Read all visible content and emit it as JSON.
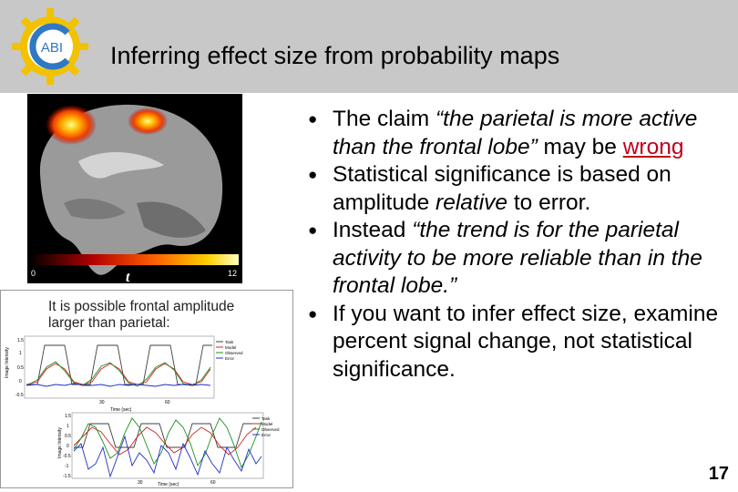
{
  "slide": {
    "title": "Inferring effect size from probability maps",
    "page_number": "17",
    "logo_text": "ABI"
  },
  "bullets": [
    {
      "pre": "The claim ",
      "em": "“the parietal is more active than the frontal lobe”",
      "post": " may be ",
      "link": "wrong",
      "tail": ""
    },
    {
      "pre": "Statistical significance is based on amplitude ",
      "em": "relative",
      "post": " to error.",
      "link": "",
      "tail": ""
    },
    {
      "pre": "Instead ",
      "em": "“the trend is for the parietal activity to be more reliable than in the frontal lobe.”",
      "post": "",
      "link": "",
      "tail": ""
    },
    {
      "pre": "If you want to infer effect size, examine percent signal change, not statistical significance.",
      "em": "",
      "post": "",
      "link": "",
      "tail": ""
    }
  ],
  "brain_figure": {
    "colorbar_min": "0",
    "colorbar_max": "12",
    "colorbar_label": "t"
  },
  "graph_panel": {
    "caption_line1": "It is possible frontal amplitude",
    "caption_line2": "larger than parietal:",
    "chart1": {
      "ylabel": "Image Intensity",
      "xlabel": "Time (sec)",
      "yticks": [
        "1.5",
        "1",
        "0.5",
        "0",
        "-0.5"
      ],
      "xticks": [
        "30",
        "60"
      ],
      "legend": [
        "Task",
        "Model",
        "Observed",
        "Error"
      ]
    },
    "chart2": {
      "ylabel": "Image Intensity",
      "xlabel": "Time (sec)",
      "yticks": [
        "1.5",
        "1",
        "0.5",
        "0",
        "-0.5",
        "-1",
        "-1.5"
      ],
      "xticks": [
        "30",
        "60"
      ],
      "legend": [
        "Task",
        "Model",
        "Observed",
        "Error"
      ]
    }
  },
  "colors": {
    "header_bg": "#c8c8c8",
    "link_red": "#c0001a",
    "task_line": "#404040",
    "model_line": "#d42020",
    "observed_line": "#1f8f1f",
    "error_line": "#2030c8"
  }
}
